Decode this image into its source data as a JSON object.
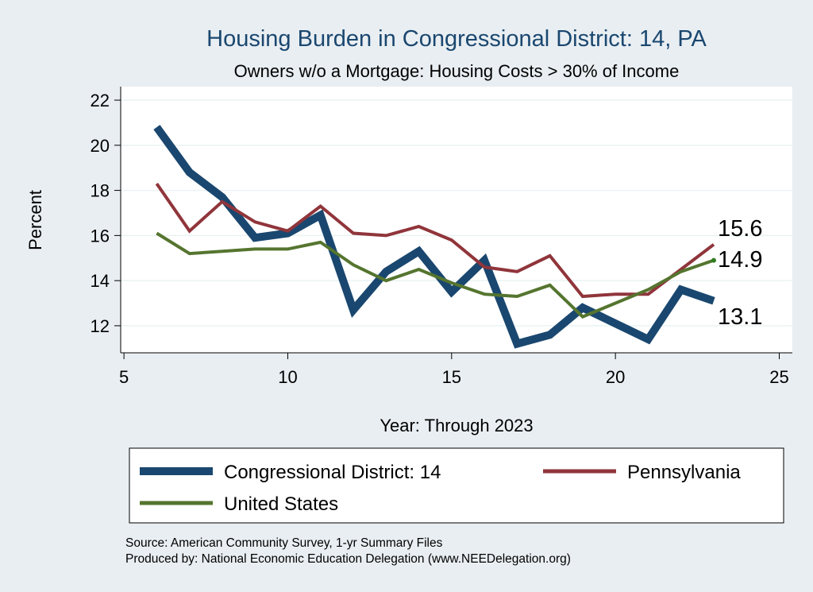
{
  "chart_data": {
    "type": "line",
    "title": "Housing Burden in Congressional District:  14, PA",
    "subtitle": "Owners w/o a Mortgage: Housing Costs > 30% of Income",
    "xlabel": "Year: Through 2023",
    "ylabel": "Percent",
    "xlim": [
      4.9,
      25.4
    ],
    "ylim": [
      10.8,
      22.6
    ],
    "x_ticks": [
      "5",
      "10",
      "15",
      "20",
      "25"
    ],
    "y_ticks": [
      "12",
      "14",
      "16",
      "18",
      "20",
      "22"
    ],
    "grid": true,
    "legend_position": "bottom",
    "end_labels": [
      "15.6",
      "14.9",
      "13.1"
    ],
    "series": [
      {
        "name": "Congressional District:  14",
        "color": "#1a476f",
        "weight": "thick",
        "x": [
          6,
          7,
          8,
          9,
          10,
          11,
          12,
          13,
          14,
          15,
          16,
          17,
          18,
          19,
          20,
          21,
          22,
          23
        ],
        "values": [
          20.8,
          18.8,
          17.7,
          15.9,
          16.1,
          16.9,
          12.7,
          14.4,
          15.3,
          13.5,
          14.9,
          11.2,
          11.6,
          12.8,
          12.1,
          11.4,
          13.6,
          13.1
        ]
      },
      {
        "name": "Pennsylvania",
        "color": "#90353b",
        "weight": "medium",
        "x": [
          6,
          7,
          8,
          9,
          10,
          11,
          12,
          13,
          14,
          15,
          16,
          17,
          18,
          19,
          20,
          21,
          22,
          23
        ],
        "values": [
          18.3,
          16.2,
          17.5,
          16.6,
          16.2,
          17.3,
          16.1,
          16.0,
          16.4,
          15.8,
          14.6,
          14.4,
          15.1,
          13.3,
          13.4,
          13.4,
          14.5,
          15.6
        ]
      },
      {
        "name": "United States",
        "color": "#55752f",
        "weight": "medium",
        "x": [
          6,
          7,
          8,
          9,
          10,
          11,
          12,
          13,
          14,
          15,
          16,
          17,
          18,
          19,
          20,
          21,
          22,
          23
        ],
        "values": [
          16.1,
          15.2,
          15.3,
          15.4,
          15.4,
          15.7,
          14.7,
          14.0,
          14.5,
          13.9,
          13.4,
          13.3,
          13.8,
          12.4,
          13.0,
          13.6,
          14.4,
          14.9
        ]
      }
    ],
    "legend": [
      {
        "label": "Congressional District:  14",
        "color": "#1a476f"
      },
      {
        "label": "Pennsylvania",
        "color": "#90353b"
      },
      {
        "label": "United States",
        "color": "#55752f"
      }
    ]
  },
  "footer": {
    "source": "Source: American Community Survey, 1-yr Summary Files",
    "producer": "Produced by: National Economic Education Delegation (www.NEEDelegation.org)"
  },
  "colors": {
    "background": "#e9eef2",
    "plot_background": "#ffffff",
    "title_color": "#1a476f",
    "grid_color": "#eaf2f3"
  }
}
